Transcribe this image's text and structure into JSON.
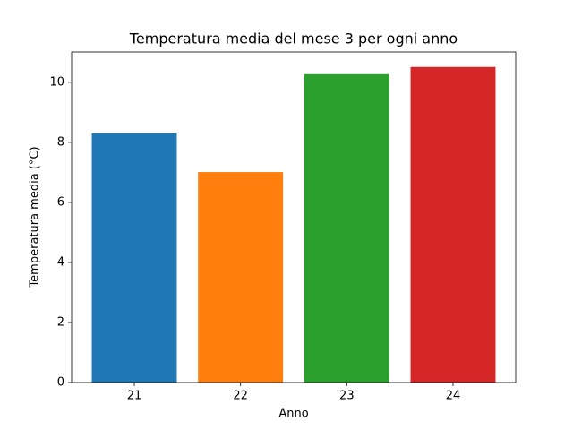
{
  "chart_data": {
    "type": "bar",
    "title": "Temperatura media del mese 3 per ogni anno",
    "x_label": "Anno",
    "y_label": "Temperatura media (°C)",
    "categories": [
      "21",
      "22",
      "23",
      "24"
    ],
    "values": [
      8.3,
      7.01,
      10.27,
      10.51
    ],
    "colors": [
      "#1f77b4",
      "#ff7f0e",
      "#2ca02c",
      "#d62728"
    ],
    "ylim": [
      0,
      11.01
    ],
    "yticks": [
      0,
      2,
      4,
      6,
      8,
      10
    ],
    "grid": false
  }
}
